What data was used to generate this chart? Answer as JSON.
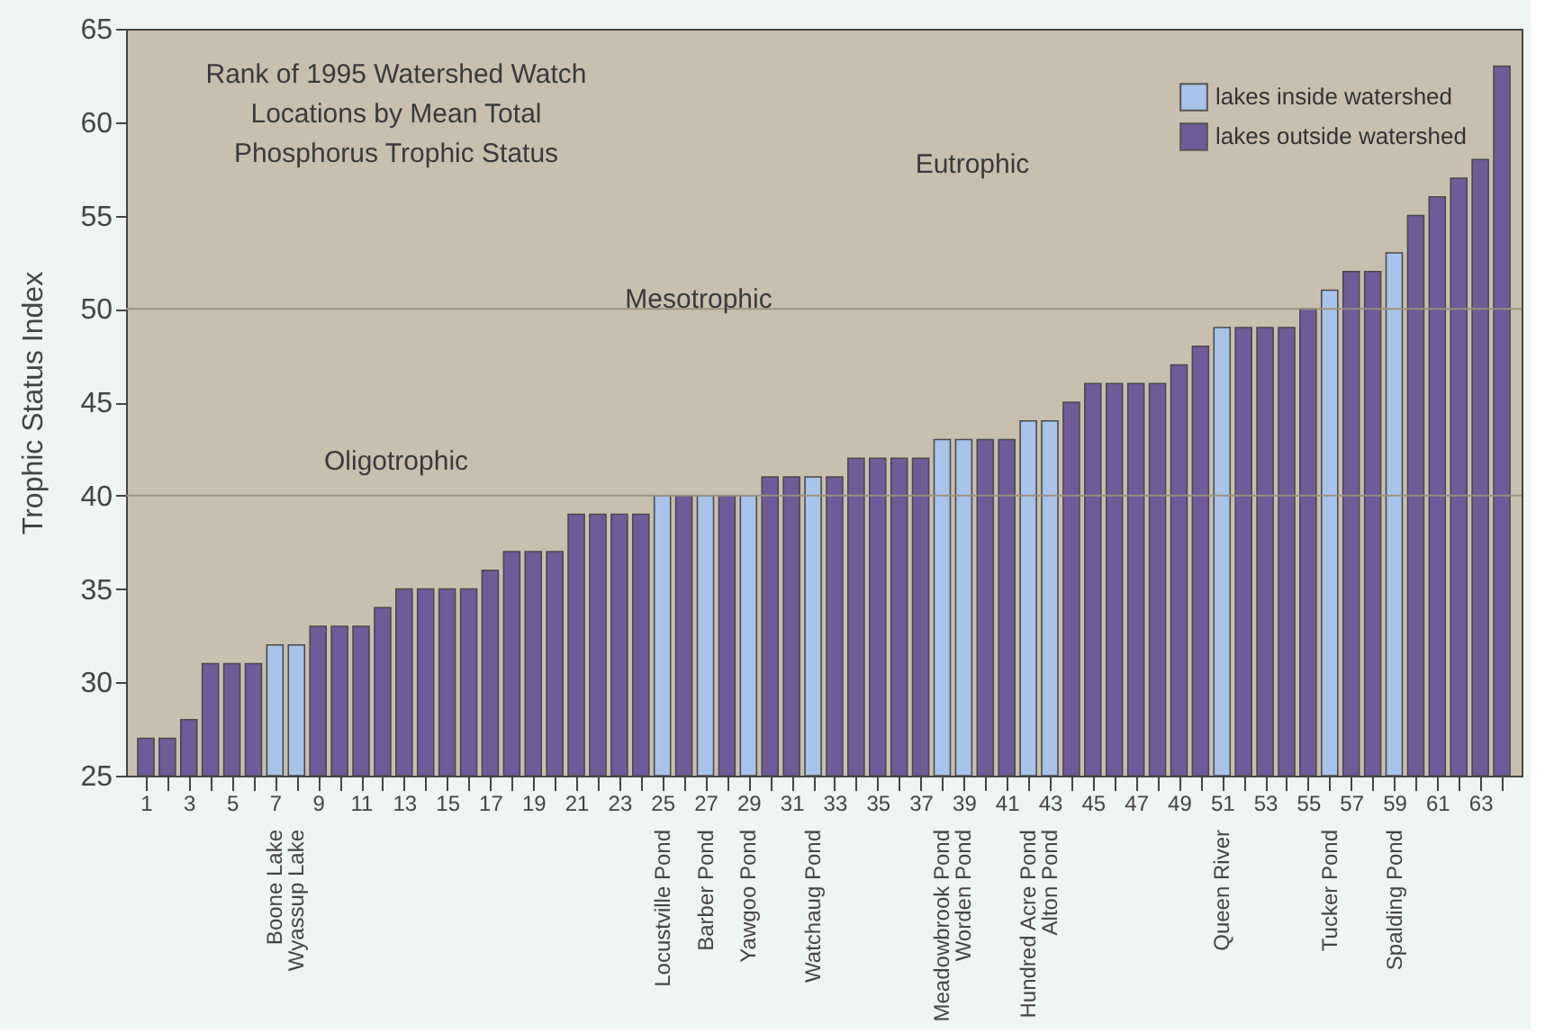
{
  "chart_data": {
    "type": "bar",
    "title": "Rank of 1995 Watershed Watch\nLocations by Mean Total\nPhosphorus Trophic Status",
    "ylabel": "Trophic Status Index",
    "x": [
      1,
      2,
      3,
      4,
      5,
      6,
      7,
      8,
      9,
      10,
      11,
      12,
      13,
      14,
      15,
      16,
      17,
      18,
      19,
      20,
      21,
      22,
      23,
      24,
      25,
      26,
      27,
      28,
      29,
      30,
      31,
      32,
      33,
      34,
      35,
      36,
      37,
      38,
      39,
      40,
      41,
      42,
      43,
      44,
      45,
      46,
      47,
      48,
      49,
      50,
      51,
      52,
      53,
      54,
      55,
      56,
      57,
      58,
      59,
      60,
      61,
      62,
      63,
      64
    ],
    "series": [
      {
        "name": "lakes inside watershed",
        "color": "#a9c4ea",
        "values": [
          null,
          null,
          null,
          null,
          null,
          null,
          32,
          32,
          null,
          null,
          null,
          null,
          null,
          null,
          null,
          null,
          null,
          null,
          null,
          null,
          null,
          null,
          null,
          null,
          40,
          null,
          40,
          null,
          40,
          null,
          null,
          41,
          null,
          null,
          null,
          null,
          null,
          43,
          43,
          null,
          null,
          44,
          44,
          null,
          null,
          null,
          null,
          null,
          null,
          null,
          49,
          null,
          null,
          null,
          null,
          51,
          null,
          null,
          53,
          null,
          null,
          null,
          null,
          null
        ]
      },
      {
        "name": "lakes outside watershed",
        "color": "#6f5a9a",
        "values": [
          27,
          27,
          28,
          31,
          31,
          31,
          null,
          null,
          33,
          33,
          33,
          34,
          35,
          35,
          35,
          35,
          36,
          37,
          37,
          37,
          39,
          39,
          39,
          39,
          null,
          40,
          null,
          40,
          null,
          41,
          41,
          null,
          41,
          42,
          42,
          42,
          42,
          null,
          null,
          43,
          43,
          null,
          null,
          45,
          46,
          46,
          46,
          46,
          47,
          48,
          null,
          49,
          49,
          49,
          50,
          null,
          52,
          52,
          null,
          55,
          56,
          57,
          58,
          63
        ]
      }
    ],
    "xlim": [
      0.5,
      64.5
    ],
    "xticks": [
      1,
      {
        "value": 2,
        "label": null
      },
      3,
      {
        "value": 4,
        "label": null
      },
      5,
      {
        "value": 6,
        "label": null
      },
      7,
      {
        "value": 8,
        "label": null
      },
      9,
      {
        "value": 10,
        "label": null
      },
      11,
      {
        "value": 12,
        "label": null
      },
      13,
      {
        "value": 14,
        "label": null
      },
      15,
      {
        "value": 16,
        "label": null
      },
      17,
      {
        "value": 18,
        "label": null
      },
      19,
      {
        "value": 20,
        "label": null
      },
      21,
      {
        "value": 22,
        "label": null
      },
      23,
      {
        "value": 24,
        "label": null
      },
      25,
      {
        "value": 26,
        "label": null
      },
      27,
      {
        "value": 28,
        "label": null
      },
      29,
      {
        "value": 30,
        "label": null
      },
      31,
      {
        "value": 32,
        "label": null
      },
      33,
      {
        "value": 34,
        "label": null
      },
      35,
      {
        "value": 36,
        "label": null
      },
      37,
      {
        "value": 38,
        "label": null
      },
      39,
      {
        "value": 40,
        "label": null
      },
      41,
      {
        "value": 42,
        "label": null
      },
      43,
      {
        "value": 44,
        "label": null
      },
      45,
      {
        "value": 46,
        "label": null
      },
      47,
      {
        "value": 48,
        "label": null
      },
      49,
      {
        "value": 50,
        "label": null
      },
      51,
      {
        "value": 52,
        "label": null
      },
      53,
      {
        "value": 54,
        "label": null
      },
      55,
      {
        "value": 56,
        "label": null
      },
      57,
      {
        "value": 58,
        "label": null
      },
      59,
      {
        "value": 60,
        "label": null
      },
      61,
      {
        "value": 62,
        "label": null
      },
      63,
      {
        "value": 64,
        "label": null
      }
    ],
    "ylim": [
      25,
      65
    ],
    "yticks": [
      25,
      30,
      35,
      40,
      45,
      50,
      55,
      60,
      65
    ],
    "grid": false,
    "legend": "top right",
    "ref_lines": [
      {
        "axis": "y",
        "value": 40,
        "color": "#9a9080"
      },
      {
        "axis": "y",
        "value": 50,
        "color": "#9a9080"
      }
    ],
    "annotations": [
      "Oligotrophic",
      "Mesotrophic",
      "Eutrophic",
      {
        "text": "Boone Lake",
        "x": 7,
        "y": 25
      },
      {
        "text": "Wyassup Lake",
        "x": 8,
        "y": 25
      },
      {
        "text": "Locustville Pond",
        "x": 25,
        "y": 25
      },
      {
        "text": "Barber Pond",
        "x": 27,
        "y": 25
      },
      {
        "text": "Yawgoo Pond",
        "x": 29,
        "y": 25
      },
      {
        "text": "Watchaug Pond",
        "x": 32,
        "y": 25
      },
      {
        "text": "Meadowbrook Pond",
        "x": 38,
        "y": 25
      },
      {
        "text": "Worden Pond",
        "x": 39,
        "y": 25
      },
      {
        "text": "Hundred Acre Pond",
        "x": 42,
        "y": 25
      },
      {
        "text": "Alton Pond",
        "x": 43,
        "y": 25
      },
      {
        "text": "Queen River",
        "x": 51,
        "y": 25
      },
      {
        "text": "Tucker Pond",
        "x": 56,
        "y": 25
      },
      {
        "text": "Spalding Pond",
        "x": 59,
        "y": 25
      }
    ]
  }
}
